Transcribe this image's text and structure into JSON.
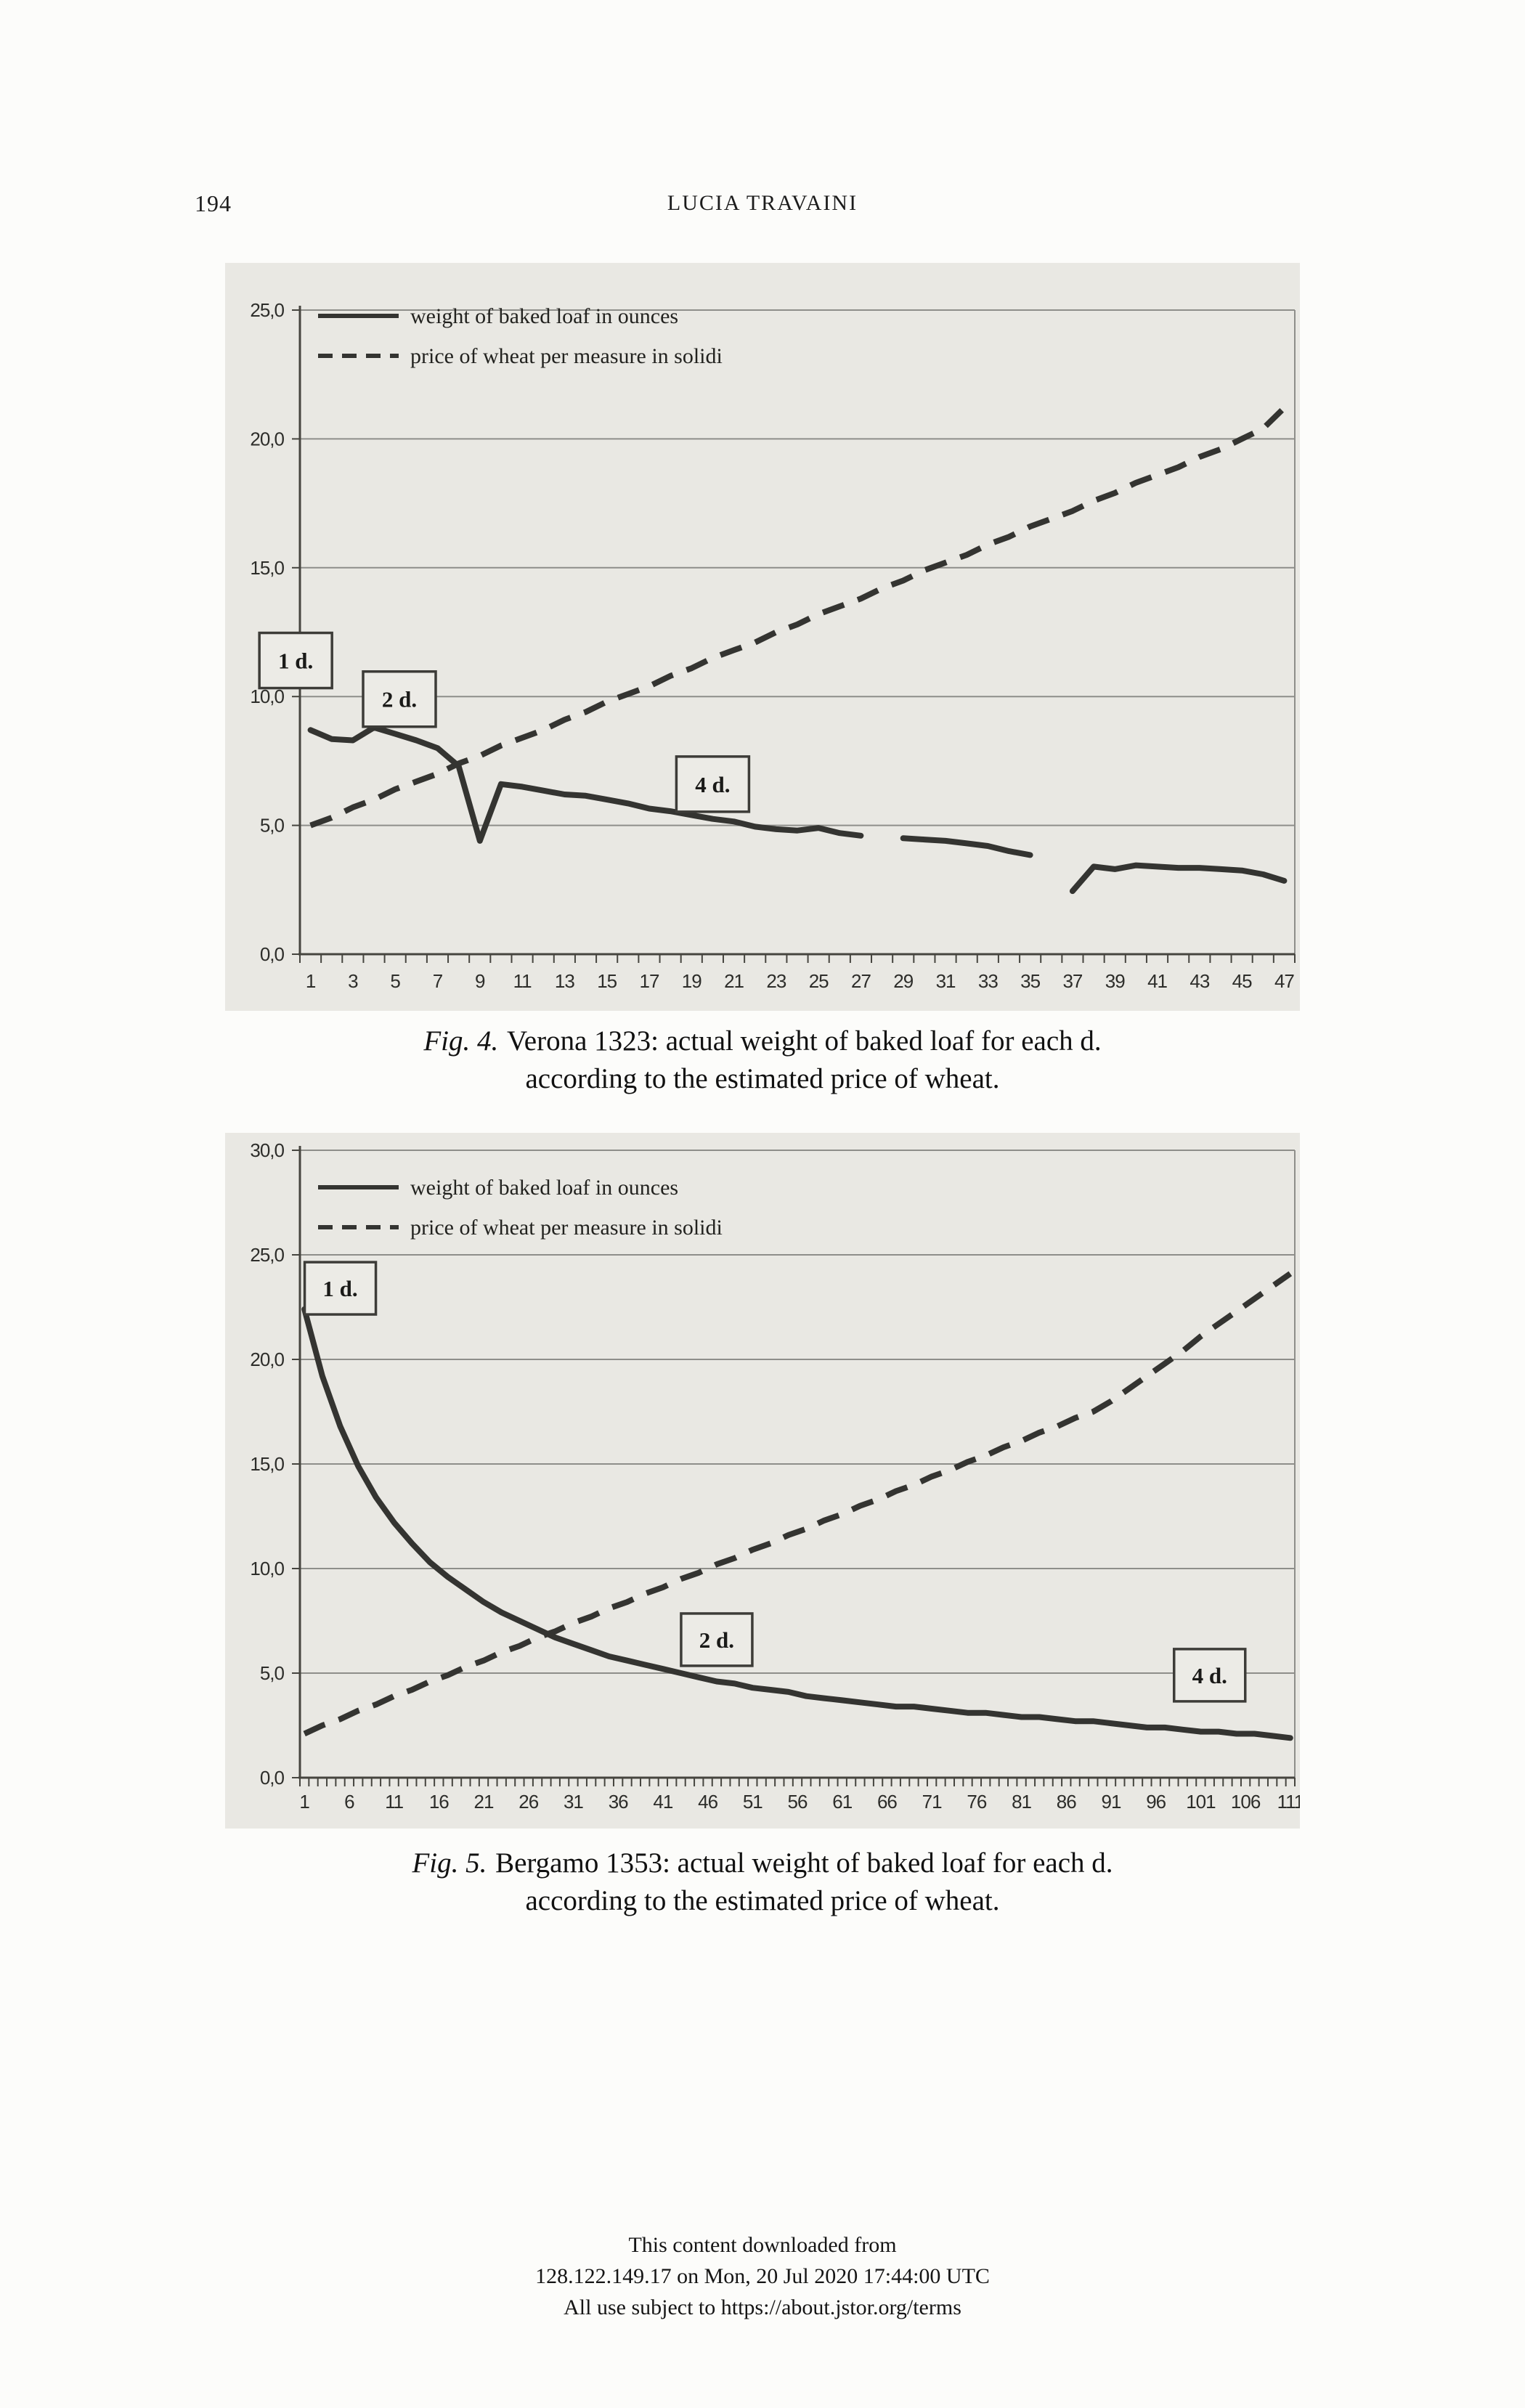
{
  "page": {
    "page_number": "194",
    "running_head": "LUCIA TRAVAINI",
    "footer": {
      "line1": "This content downloaded from",
      "line2": "128.122.149.17 on Mon, 20 Jul 2020 17:44:00 UTC",
      "line3": "All use subject to https://about.jstor.org/terms"
    }
  },
  "figures": [
    {
      "caption_prefix": "Fig. 4.",
      "caption_line1": "Verona 1323: actual weight of baked loaf for each d.",
      "caption_line2": "according to the estimated price of wheat."
    },
    {
      "caption_prefix": "Fig. 5.",
      "caption_line1": "Bergamo 1353: actual weight of baked loaf for each d.",
      "caption_line2": "according to the estimated price of wheat."
    }
  ],
  "style_colors": {
    "panel_background": "#e9e8e3",
    "line_color": "#343431",
    "gridline_color": "#8e8e8a",
    "text_color": "#1c1c1c"
  },
  "chart_data": [
    {
      "type": "line",
      "title": "",
      "xlabel": "",
      "ylabel": "",
      "ylim": [
        0,
        25
      ],
      "y_step": 5,
      "grid": "horizontal",
      "legend_position": "top-left",
      "y_tick_labels": [
        "0,0",
        "5,0",
        "10,0",
        "15,0",
        "20,0",
        "25,0"
      ],
      "x_count": 47,
      "x_tick_labels": [
        "1",
        "3",
        "5",
        "7",
        "9",
        "11",
        "13",
        "15",
        "17",
        "19",
        "21",
        "23",
        "25",
        "27",
        "29",
        "31",
        "33",
        "35",
        "37",
        "39",
        "41",
        "43",
        "45",
        "47"
      ],
      "x": [
        1,
        2,
        3,
        4,
        5,
        6,
        7,
        8,
        9,
        10,
        11,
        12,
        13,
        14,
        15,
        16,
        17,
        18,
        19,
        20,
        21,
        22,
        23,
        24,
        25,
        26,
        27,
        28,
        29,
        30,
        31,
        32,
        33,
        34,
        35,
        36,
        37,
        38,
        39,
        40,
        41,
        42,
        43,
        44,
        45,
        46,
        47
      ],
      "legend": [
        {
          "name": "weight of baked loaf in ounces",
          "style": "solid"
        },
        {
          "name": "price of wheat per measure in solidi",
          "style": "dashed"
        }
      ],
      "series": [
        {
          "name": "weight of baked loaf in ounces",
          "style": "solid",
          "values": [
            8.7,
            8.35,
            8.3,
            8.8,
            8.55,
            8.3,
            8.0,
            7.3,
            4.4,
            6.6,
            6.5,
            6.35,
            6.2,
            6.15,
            6.0,
            5.85,
            5.65,
            5.55,
            5.4,
            5.25,
            5.15,
            4.95,
            4.85,
            4.8,
            4.9,
            4.7,
            4.6,
            null,
            4.5,
            4.45,
            4.4,
            4.3,
            4.2,
            4.0,
            3.85,
            null,
            2.45,
            3.4,
            3.3,
            3.45,
            3.4,
            3.35,
            3.35,
            3.3,
            3.25,
            3.1,
            2.85
          ]
        },
        {
          "name": "price of wheat per measure in solidi",
          "style": "dashed",
          "values": [
            5.0,
            5.3,
            5.7,
            6.0,
            6.4,
            6.7,
            7.0,
            7.4,
            7.7,
            8.1,
            8.4,
            8.7,
            9.1,
            9.4,
            9.8,
            10.1,
            10.4,
            10.8,
            11.1,
            11.5,
            11.8,
            12.1,
            12.5,
            12.8,
            13.2,
            13.5,
            13.8,
            14.2,
            14.5,
            14.9,
            15.2,
            15.5,
            15.9,
            16.2,
            16.6,
            16.9,
            17.2,
            17.6,
            17.9,
            18.3,
            18.6,
            18.9,
            19.3,
            19.6,
            20.0,
            20.4,
            21.2
          ]
        }
      ],
      "annotations": [
        {
          "label": "1 d.",
          "x": 0.3,
          "y": 11.4
        },
        {
          "label": "2 d.",
          "x": 5.2,
          "y": 9.9
        },
        {
          "label": "4 d.",
          "x": 20,
          "y": 6.6
        }
      ]
    },
    {
      "type": "line",
      "title": "",
      "xlabel": "",
      "ylabel": "",
      "ylim": [
        0,
        30
      ],
      "y_step": 5,
      "grid": "horizontal",
      "legend_position": "top-left",
      "y_tick_labels": [
        "0,0",
        "5,0",
        "10,0",
        "15,0",
        "20,0",
        "25,0",
        "30,0"
      ],
      "x_count": 111,
      "x_tick_labels": [
        "1",
        "6",
        "11",
        "16",
        "21",
        "26",
        "31",
        "36",
        "41",
        "46",
        "51",
        "56",
        "61",
        "66",
        "71",
        "76",
        "81",
        "86",
        "91",
        "96",
        "101",
        "106",
        "111"
      ],
      "x": [
        1,
        3,
        5,
        7,
        9,
        11,
        13,
        15,
        17,
        19,
        21,
        23,
        25,
        27,
        29,
        31,
        33,
        35,
        37,
        39,
        41,
        43,
        45,
        47,
        49,
        51,
        53,
        55,
        57,
        59,
        61,
        63,
        65,
        67,
        69,
        71,
        73,
        75,
        77,
        79,
        81,
        83,
        85,
        87,
        89,
        91,
        93,
        95,
        97,
        99,
        101,
        103,
        105,
        107,
        109,
        111
      ],
      "legend": [
        {
          "name": "weight of baked loaf in ounces",
          "style": "solid"
        },
        {
          "name": "price of wheat per measure in solidi",
          "style": "dashed"
        }
      ],
      "series": [
        {
          "name": "weight of baked loaf in ounces",
          "style": "solid",
          "values": [
            22.4,
            19.2,
            16.8,
            14.9,
            13.4,
            12.2,
            11.2,
            10.3,
            9.6,
            9.0,
            8.4,
            7.9,
            7.5,
            7.1,
            6.7,
            6.4,
            6.1,
            5.8,
            5.6,
            5.4,
            5.2,
            5.0,
            4.8,
            4.6,
            4.5,
            4.3,
            4.2,
            4.1,
            3.9,
            3.8,
            3.7,
            3.6,
            3.5,
            3.4,
            3.4,
            3.3,
            3.2,
            3.1,
            3.1,
            3.0,
            2.9,
            2.9,
            2.8,
            2.7,
            2.7,
            2.6,
            2.5,
            2.4,
            2.4,
            2.3,
            2.2,
            2.2,
            2.1,
            2.1,
            2.0,
            1.9
          ]
        },
        {
          "name": "price of wheat per measure in solidi",
          "style": "dashed",
          "values": [
            2.1,
            2.5,
            2.8,
            3.2,
            3.5,
            3.9,
            4.2,
            4.6,
            4.9,
            5.3,
            5.6,
            6.0,
            6.3,
            6.7,
            7.0,
            7.4,
            7.7,
            8.1,
            8.4,
            8.8,
            9.1,
            9.5,
            9.8,
            10.2,
            10.5,
            10.9,
            11.2,
            11.6,
            11.9,
            12.3,
            12.6,
            13.0,
            13.3,
            13.7,
            14.0,
            14.4,
            14.7,
            15.1,
            15.4,
            15.8,
            16.1,
            16.5,
            16.8,
            17.2,
            17.5,
            18.0,
            18.6,
            19.2,
            19.8,
            20.4,
            21.1,
            21.7,
            22.3,
            22.9,
            23.5,
            24.1
          ]
        }
      ],
      "annotations": [
        {
          "label": "1 d.",
          "x": 5,
          "y": 23.4
        },
        {
          "label": "2 d.",
          "x": 47,
          "y": 6.6
        },
        {
          "label": "4 d.",
          "x": 102,
          "y": 4.9
        }
      ]
    }
  ]
}
